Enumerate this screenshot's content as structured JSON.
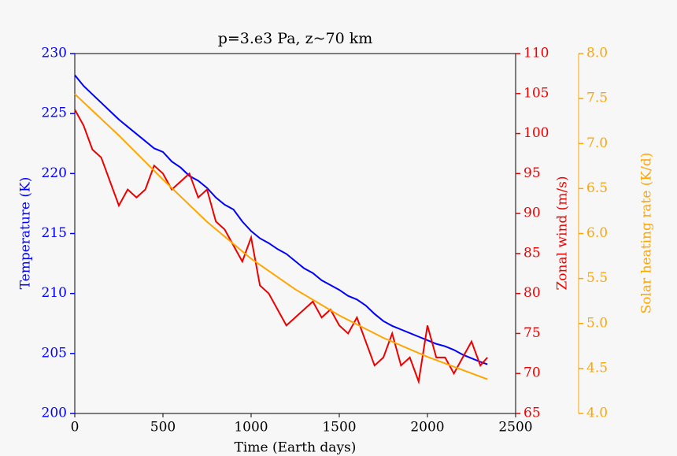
{
  "chart_data": {
    "type": "line",
    "title": "p=3.e3 Pa, z~70 km",
    "xlabel": "Time (Earth days)",
    "ylabel": "Temperature (K)",
    "y2label": "Zonal wind (m/s)",
    "y3label": "Solar heating rate (K/d)",
    "xlim": [
      0,
      2500
    ],
    "xticks": [
      0,
      500,
      1000,
      1500,
      2000,
      2500
    ],
    "ylim": [
      200,
      230
    ],
    "yticks": [
      200,
      205,
      210,
      215,
      220,
      225,
      230
    ],
    "ycolor": "#0000ff",
    "y2lim": [
      65,
      110
    ],
    "y2ticks": [
      65,
      70,
      75,
      80,
      85,
      90,
      95,
      100,
      105,
      110
    ],
    "y2color": "#ee0000",
    "y3lim": [
      4,
      8
    ],
    "y3ticks": [
      {
        "value": 4,
        "label": "4.0"
      },
      {
        "value": 4.5,
        "label": "4.5"
      },
      {
        "value": 5,
        "label": "5.0"
      },
      {
        "value": 5.5,
        "label": "5.5"
      },
      {
        "value": 6,
        "label": "6.0"
      },
      {
        "value": 6.5,
        "label": "6.5"
      },
      {
        "value": 7,
        "label": "7.0"
      },
      {
        "value": 7.5,
        "label": "7.5"
      },
      {
        "value": 8,
        "label": "8.0"
      }
    ],
    "y3color": "#ffa500",
    "series": [
      {
        "axis": "y",
        "color": "#0000ff",
        "x": [
          0,
          50,
          100,
          150,
          200,
          250,
          300,
          350,
          400,
          450,
          500,
          550,
          600,
          650,
          700,
          750,
          800,
          850,
          900,
          950,
          1000,
          1050,
          1100,
          1150,
          1200,
          1250,
          1300,
          1350,
          1400,
          1450,
          1500,
          1550,
          1600,
          1650,
          1700,
          1750,
          1800,
          1850,
          1900,
          1950,
          2000,
          2050,
          2100,
          2150,
          2200,
          2250,
          2300,
          2340
        ],
        "values": [
          228.2,
          227.3,
          226.6,
          225.9,
          225.2,
          224.5,
          223.9,
          223.3,
          222.7,
          222.1,
          221.8,
          221.0,
          220.5,
          219.8,
          219.4,
          218.8,
          218.0,
          217.4,
          217.0,
          216.0,
          215.2,
          214.6,
          214.2,
          213.7,
          213.3,
          212.7,
          212.1,
          211.7,
          211.1,
          210.7,
          210.3,
          209.8,
          209.5,
          209.0,
          208.3,
          207.7,
          207.3,
          207.0,
          206.7,
          206.4,
          206.1,
          205.8,
          205.6,
          205.3,
          204.9,
          204.6,
          204.3,
          204.1
        ]
      },
      {
        "axis": "y2",
        "color": "#ee0000",
        "x": [
          0,
          50,
          100,
          150,
          200,
          250,
          300,
          350,
          400,
          450,
          500,
          550,
          600,
          650,
          700,
          750,
          800,
          850,
          900,
          950,
          1000,
          1050,
          1100,
          1150,
          1200,
          1250,
          1300,
          1350,
          1400,
          1450,
          1500,
          1550,
          1600,
          1650,
          1700,
          1750,
          1800,
          1850,
          1900,
          1950,
          2000,
          2050,
          2100,
          2150,
          2200,
          2250,
          2300,
          2340
        ],
        "values": [
          103,
          101,
          98,
          97,
          94,
          91,
          93,
          92,
          93,
          96,
          95,
          93,
          94,
          95,
          92,
          93,
          89,
          88,
          86,
          84,
          87,
          81,
          80,
          78,
          76,
          77,
          78,
          79,
          77,
          78,
          76,
          75,
          77,
          74,
          71,
          72,
          75,
          71,
          72,
          69,
          76,
          72,
          72,
          70,
          72,
          74,
          71,
          72
        ]
      },
      {
        "axis": "y3",
        "color": "#ffa500",
        "x": [
          0,
          250,
          500,
          750,
          1000,
          1250,
          1500,
          1750,
          2000,
          2340
        ],
        "values": [
          7.55,
          7.09,
          6.6,
          6.13,
          5.72,
          5.38,
          5.09,
          4.84,
          4.63,
          4.38
        ]
      }
    ]
  }
}
